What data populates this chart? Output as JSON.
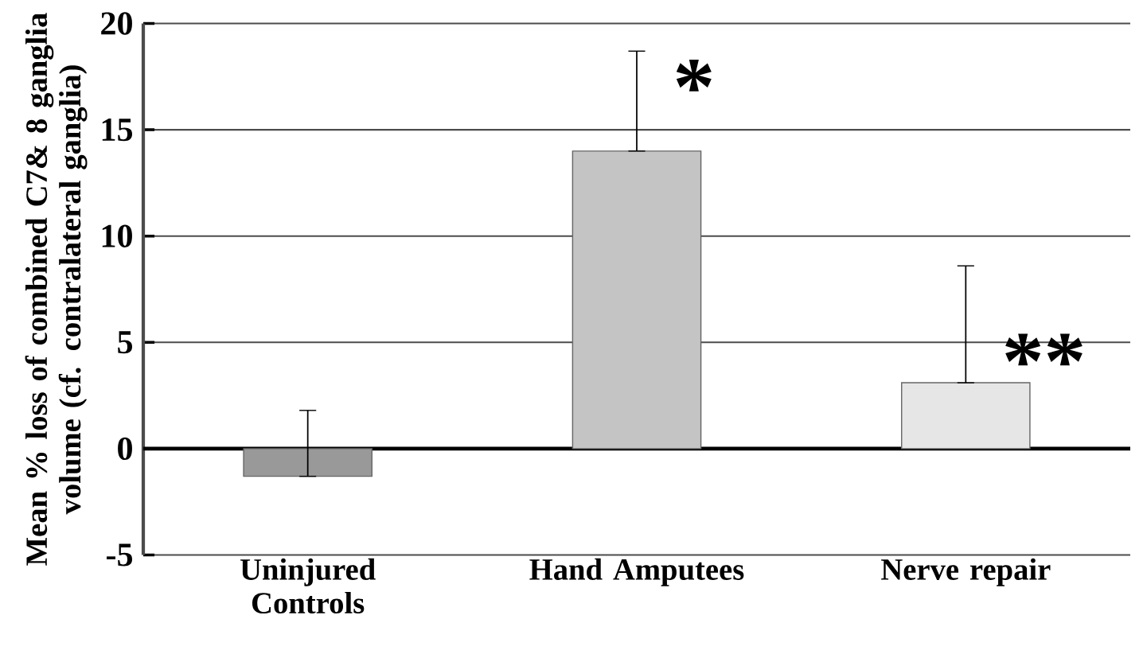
{
  "chart_data": {
    "type": "bar",
    "ylabel": "Mean % loss of combined C7& 8 ganglia volume (cf. contralateral ganglia)",
    "categories": [
      "Uninjured Controls",
      "Hand Amputees",
      "Nerve repair"
    ],
    "values": [
      -1.3,
      14,
      3.1
    ],
    "colors": [
      "#999999",
      "#c4c4c4",
      "#e6e6e6"
    ],
    "errors": [
      [
        -1.3,
        1.8
      ],
      [
        14,
        18.7
      ],
      [
        3.1,
        8.6
      ]
    ],
    "ylim": [
      -5,
      20
    ],
    "yticks": [
      -5,
      0,
      5,
      10,
      15,
      20
    ],
    "grid": "y",
    "annotations": [
      {
        "text": "*",
        "x": "Hand Amputees",
        "y": 17
      },
      {
        "text": "**",
        "x": "Nerve repair",
        "y": 4.1
      }
    ]
  }
}
